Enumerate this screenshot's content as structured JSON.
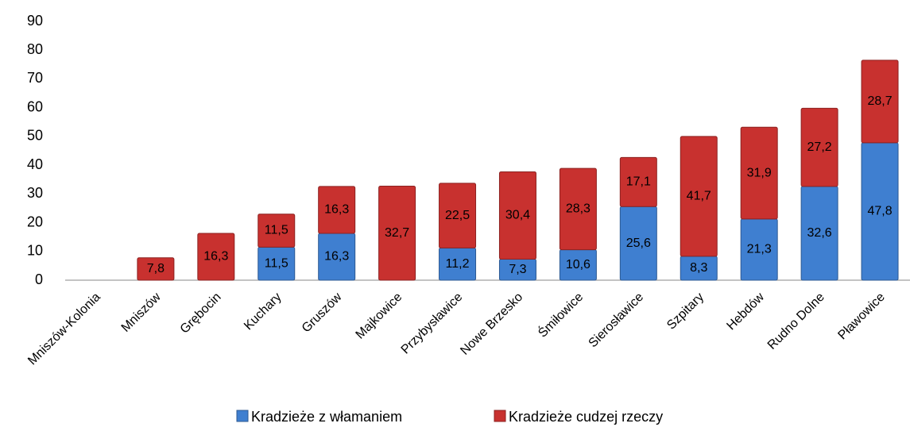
{
  "chart_data": {
    "type": "stacked_bar",
    "categories": [
      "Mniszów-Kolonia",
      "Mniszów",
      "Grębocin",
      "Kuchary",
      "Gruszów",
      "Majkowice",
      "Przybysławice",
      "Nowe Brzesko",
      "Śmiłowice",
      "Sierosławice",
      "Szpitary",
      "Hebdów",
      "Rudno Dolne",
      "Pławowice"
    ],
    "series": [
      {
        "name": "Kradzieże z włamaniem",
        "color": "#3f7fd0",
        "values": [
          null,
          null,
          null,
          11.5,
          16.3,
          null,
          11.2,
          7.3,
          10.6,
          25.6,
          8.3,
          21.3,
          32.6,
          47.8
        ],
        "value_labels": [
          null,
          null,
          null,
          "11,5",
          "16,3",
          null,
          "11,2",
          "7,3",
          "10,6",
          "25,6",
          "8,3",
          "21,3",
          "32,6",
          "47,8"
        ]
      },
      {
        "name": "Kradzieże cudzej rzeczy",
        "color": "#c8312f",
        "values": [
          null,
          7.8,
          16.3,
          11.5,
          16.3,
          32.7,
          22.5,
          30.4,
          28.3,
          17.1,
          41.7,
          31.9,
          27.2,
          28.7
        ],
        "value_labels": [
          null,
          "7,8",
          "16,3",
          "11,5",
          "16,3",
          "32,7",
          "22,5",
          "30,4",
          "28,3",
          "17,1",
          "41,7",
          "31,9",
          "27,2",
          "28,7"
        ]
      }
    ],
    "ylim": [
      0,
      90
    ],
    "yticks": [
      0,
      10,
      20,
      30,
      40,
      50,
      60,
      70,
      80,
      90
    ],
    "grid": false,
    "legend": "bottom"
  }
}
